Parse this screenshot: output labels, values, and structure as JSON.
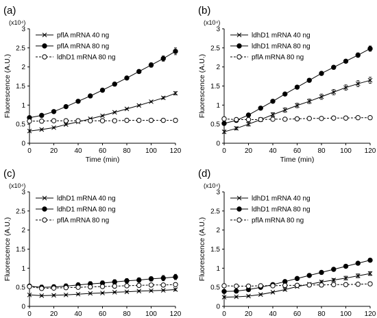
{
  "chart_data": [
    {
      "type": "line",
      "panel_label": "(a)",
      "xlabel": "Time (min)",
      "ylabel": "Fluorescence (A.U.)",
      "y_multiplier": "(x10⁴)",
      "xlim": [
        0,
        120
      ],
      "ylim": [
        0,
        3
      ],
      "x_ticks": [
        "0",
        "20",
        "40",
        "60",
        "80",
        "100",
        "120"
      ],
      "y_ticks": [
        "0",
        "0.5",
        "1",
        "1.5",
        "2",
        "2.5",
        "3"
      ],
      "legend_position": "top-left",
      "x": [
        0,
        10,
        20,
        30,
        40,
        50,
        60,
        70,
        80,
        90,
        100,
        110,
        120
      ],
      "series": [
        {
          "name": "pflA mRNA 40 ng",
          "marker": "cross",
          "line": "solid",
          "values": [
            0.32,
            0.36,
            0.41,
            0.49,
            0.56,
            0.64,
            0.72,
            0.81,
            0.9,
            0.99,
            1.09,
            1.19,
            1.31
          ],
          "errors": [
            0.03,
            0.02,
            0.02,
            0.02,
            0.02,
            0.02,
            0.02,
            0.02,
            0.02,
            0.02,
            0.02,
            0.03,
            0.04
          ]
        },
        {
          "name": "pflA mRNA 80 ng",
          "marker": "filled-circle",
          "line": "solid",
          "values": [
            0.67,
            0.73,
            0.83,
            0.96,
            1.1,
            1.24,
            1.39,
            1.55,
            1.71,
            1.88,
            2.05,
            2.22,
            2.41
          ],
          "errors": [
            0.04,
            0.03,
            0.03,
            0.03,
            0.03,
            0.03,
            0.04,
            0.04,
            0.05,
            0.05,
            0.06,
            0.07,
            0.09
          ]
        },
        {
          "name": "ldhD1 mRNA 80 ng",
          "marker": "open-circle",
          "line": "dashed",
          "values": [
            0.58,
            0.58,
            0.59,
            0.59,
            0.59,
            0.59,
            0.59,
            0.59,
            0.6,
            0.6,
            0.6,
            0.6,
            0.6
          ],
          "errors": [
            0.02,
            0.02,
            0.02,
            0.02,
            0.02,
            0.02,
            0.02,
            0.02,
            0.02,
            0.02,
            0.02,
            0.02,
            0.02
          ]
        }
      ]
    },
    {
      "type": "line",
      "panel_label": "(b)",
      "xlabel": "Time (min)",
      "ylabel": "Fluorescence (A.U.)",
      "y_multiplier": "(x10⁴)",
      "xlim": [
        0,
        120
      ],
      "ylim": [
        0,
        3
      ],
      "x_ticks": [
        "0",
        "20",
        "40",
        "60",
        "80",
        "100",
        "120"
      ],
      "y_ticks": [
        "0",
        "0.5",
        "1",
        "1.5",
        "2",
        "2.5",
        "3"
      ],
      "legend_position": "top-left",
      "x": [
        0,
        10,
        20,
        30,
        40,
        50,
        60,
        70,
        80,
        90,
        100,
        110,
        120
      ],
      "series": [
        {
          "name": "ldhD1 mRNA 40 ng",
          "marker": "cross",
          "line": "solid",
          "values": [
            0.3,
            0.39,
            0.5,
            0.62,
            0.75,
            0.87,
            0.99,
            1.1,
            1.22,
            1.34,
            1.46,
            1.56,
            1.65
          ],
          "errors": [
            0.04,
            0.04,
            0.05,
            0.05,
            0.05,
            0.06,
            0.06,
            0.06,
            0.07,
            0.07,
            0.07,
            0.08,
            0.08
          ]
        },
        {
          "name": "ldhD1 mRNA 80 ng",
          "marker": "filled-circle",
          "line": "solid",
          "values": [
            0.52,
            0.6,
            0.74,
            0.92,
            1.1,
            1.29,
            1.47,
            1.65,
            1.83,
            1.99,
            2.15,
            2.31,
            2.48
          ],
          "errors": [
            0.04,
            0.04,
            0.04,
            0.04,
            0.04,
            0.04,
            0.05,
            0.05,
            0.05,
            0.05,
            0.05,
            0.06,
            0.07
          ]
        },
        {
          "name": "pflA mRNA 80 ng",
          "marker": "open-circle",
          "line": "dashed",
          "values": [
            0.64,
            0.62,
            0.62,
            0.62,
            0.63,
            0.63,
            0.64,
            0.65,
            0.65,
            0.66,
            0.66,
            0.67,
            0.67
          ],
          "errors": [
            0.02,
            0.02,
            0.02,
            0.02,
            0.02,
            0.02,
            0.02,
            0.02,
            0.02,
            0.02,
            0.02,
            0.02,
            0.02
          ]
        }
      ]
    },
    {
      "type": "line",
      "panel_label": "(c)",
      "xlabel": "Time (min)",
      "ylabel": "Fluorescence (A.U.)",
      "y_multiplier": "(x10⁴)",
      "xlim": [
        0,
        120
      ],
      "ylim": [
        0,
        3
      ],
      "x_ticks": [
        "0",
        "20",
        "40",
        "60",
        "80",
        "100",
        "120"
      ],
      "y_ticks": [
        "0",
        "0.5",
        "1",
        "1.5",
        "2",
        "2.5",
        "3"
      ],
      "legend_position": "top-left",
      "x": [
        0,
        10,
        20,
        30,
        40,
        50,
        60,
        70,
        80,
        90,
        100,
        110,
        120
      ],
      "series": [
        {
          "name": "ldhD1 mRNA 40 ng",
          "marker": "cross",
          "line": "solid",
          "values": [
            0.3,
            0.28,
            0.29,
            0.3,
            0.32,
            0.34,
            0.35,
            0.37,
            0.38,
            0.4,
            0.41,
            0.42,
            0.44
          ],
          "errors": [
            0.02,
            0.02,
            0.02,
            0.02,
            0.02,
            0.02,
            0.02,
            0.02,
            0.02,
            0.02,
            0.02,
            0.02,
            0.03
          ]
        },
        {
          "name": "ldhD1 mRNA 80 ng",
          "marker": "filled-circle",
          "line": "solid",
          "values": [
            0.53,
            0.5,
            0.51,
            0.53,
            0.56,
            0.59,
            0.61,
            0.64,
            0.67,
            0.69,
            0.72,
            0.74,
            0.77
          ],
          "errors": [
            0.05,
            0.06,
            0.06,
            0.06,
            0.06,
            0.06,
            0.06,
            0.06,
            0.06,
            0.06,
            0.06,
            0.07,
            0.07
          ]
        },
        {
          "name": "pflA mRNA 80 ng",
          "marker": "open-circle",
          "line": "dashed",
          "values": [
            0.52,
            0.47,
            0.48,
            0.49,
            0.5,
            0.51,
            0.52,
            0.53,
            0.54,
            0.55,
            0.56,
            0.56,
            0.57
          ],
          "errors": [
            0.04,
            0.04,
            0.04,
            0.04,
            0.04,
            0.04,
            0.04,
            0.04,
            0.04,
            0.04,
            0.04,
            0.04,
            0.04
          ]
        }
      ]
    },
    {
      "type": "line",
      "panel_label": "(d)",
      "xlabel": "Time (min)",
      "ylabel": "Fluorescence (A.U.)",
      "y_multiplier": "(x10⁴)",
      "xlim": [
        0,
        120
      ],
      "ylim": [
        0,
        3
      ],
      "x_ticks": [
        "0",
        "20",
        "40",
        "60",
        "80",
        "100",
        "120"
      ],
      "y_ticks": [
        "0",
        "0.5",
        "1",
        "1.5",
        "2",
        "2.5",
        "3"
      ],
      "legend_position": "top-left",
      "x": [
        0,
        10,
        20,
        30,
        40,
        50,
        60,
        70,
        80,
        90,
        100,
        110,
        120
      ],
      "series": [
        {
          "name": "ldhD1 mRNA 40 ng",
          "marker": "cross",
          "line": "solid",
          "values": [
            0.24,
            0.25,
            0.27,
            0.31,
            0.37,
            0.44,
            0.52,
            0.58,
            0.64,
            0.69,
            0.74,
            0.8,
            0.86
          ],
          "errors": [
            0.02,
            0.02,
            0.02,
            0.02,
            0.02,
            0.03,
            0.03,
            0.03,
            0.04,
            0.04,
            0.05,
            0.05,
            0.05
          ]
        },
        {
          "name": "ldhD1 mRNA 80 ng",
          "marker": "filled-circle",
          "line": "solid",
          "values": [
            0.39,
            0.4,
            0.44,
            0.5,
            0.57,
            0.65,
            0.73,
            0.81,
            0.89,
            0.97,
            1.05,
            1.13,
            1.21
          ],
          "errors": [
            0.02,
            0.02,
            0.02,
            0.02,
            0.02,
            0.02,
            0.02,
            0.03,
            0.03,
            0.03,
            0.03,
            0.03,
            0.03
          ]
        },
        {
          "name": "pflA mRNA 80 ng",
          "marker": "open-circle",
          "line": "dashed",
          "values": [
            0.54,
            0.53,
            0.53,
            0.54,
            0.54,
            0.55,
            0.55,
            0.56,
            0.56,
            0.57,
            0.57,
            0.58,
            0.59
          ],
          "errors": [
            0.02,
            0.02,
            0.02,
            0.02,
            0.02,
            0.02,
            0.02,
            0.02,
            0.02,
            0.02,
            0.02,
            0.02,
            0.02
          ]
        }
      ]
    }
  ]
}
